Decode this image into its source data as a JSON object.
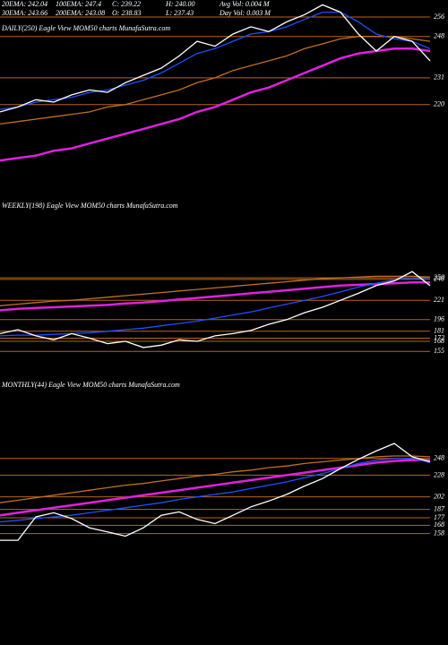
{
  "header": {
    "row1": [
      "20EMA: 242.04",
      "100EMA: 247.4",
      "C: 239.22",
      "H: 240.00",
      "Avg Vol: 0.004  M"
    ],
    "row2": [
      "30EMA: 243.66",
      "200EMA: 243.08",
      "O: 238.83",
      "L: 237.43",
      "Day Vol: 0.003  M"
    ]
  },
  "chart_data": [
    {
      "type": "line",
      "title": "DAILY(250) Eagle  View  MOM50  charts MunafaSutra.com",
      "ylim": [
        193,
        263
      ],
      "yticks": [
        256,
        248,
        231,
        220
      ],
      "grid": true,
      "grid_color": "#b8651b",
      "series": [
        {
          "color": "#c07020",
          "values": [
            212,
            213,
            214,
            215,
            216,
            217,
            219,
            220,
            222,
            224,
            226,
            229,
            231,
            234,
            236,
            238,
            240,
            243,
            245,
            247,
            248,
            248,
            248,
            247,
            246
          ]
        },
        {
          "color": "#e020e0",
          "values": [
            197,
            198,
            199,
            201,
            202,
            204,
            206,
            208,
            210,
            212,
            214,
            217,
            219,
            222,
            225,
            227,
            230,
            233,
            236,
            239,
            241,
            242,
            243,
            243,
            242
          ]
        },
        {
          "color": "#1f4fff",
          "values": [
            218,
            219,
            221,
            222,
            223,
            225,
            226,
            228,
            230,
            233,
            237,
            241,
            243,
            246,
            249,
            250,
            252,
            255,
            258,
            258,
            254,
            249,
            247,
            246,
            243
          ]
        },
        {
          "color": "#ffffff",
          "values": [
            217,
            219,
            222,
            221,
            224,
            226,
            225,
            229,
            232,
            235,
            240,
            246,
            244,
            249,
            252,
            250,
            254,
            257,
            261,
            258,
            249,
            242,
            248,
            246,
            238
          ]
        }
      ]
    },
    {
      "type": "line",
      "title": "WEEKLY(198) Eagle  View  MOM50  charts MunafaSutra.com",
      "ylim": [
        146,
        337
      ],
      "yticks": [
        250,
        248,
        221,
        196,
        181,
        172,
        168,
        155
      ],
      "grid": true,
      "grid_color": "#b8651b",
      "series": [
        {
          "color": "#c07020",
          "values": [
            214,
            216,
            218,
            220,
            221,
            223,
            225,
            227,
            229,
            231,
            233,
            235,
            237,
            239,
            241,
            243,
            245,
            247,
            249,
            250,
            251,
            252,
            252,
            252,
            251
          ]
        },
        {
          "color": "#e020e0",
          "values": [
            208,
            210,
            211,
            212,
            213,
            214,
            215,
            217,
            218,
            220,
            222,
            224,
            226,
            228,
            230,
            232,
            234,
            236,
            238,
            240,
            241,
            242,
            243,
            244,
            244
          ]
        },
        {
          "color": "#1f4fff",
          "values": [
            175,
            176,
            176,
            177,
            178,
            179,
            181,
            183,
            185,
            188,
            191,
            194,
            198,
            202,
            206,
            211,
            216,
            221,
            226,
            232,
            238,
            243,
            247,
            250,
            248
          ]
        },
        {
          "color": "#ffffff",
          "values": [
            178,
            183,
            175,
            170,
            178,
            172,
            165,
            168,
            160,
            163,
            170,
            168,
            175,
            178,
            182,
            190,
            196,
            205,
            212,
            221,
            230,
            240,
            246,
            258,
            240
          ]
        }
      ]
    },
    {
      "type": "line",
      "title": "MONTHLY(44) Eagle  View  MOM50  charts MunafaSutra.com",
      "ylim": [
        148,
        325
      ],
      "yticks": [
        248,
        228,
        202,
        187,
        177,
        168,
        158
      ],
      "grid": true,
      "grid_color": "#b8651b",
      "series": [
        {
          "color": "#c07020",
          "values": [
            195,
            198,
            201,
            204,
            207,
            210,
            213,
            216,
            218,
            221,
            224,
            227,
            229,
            232,
            234,
            237,
            239,
            242,
            244,
            246,
            248,
            250,
            251,
            251,
            250
          ]
        },
        {
          "color": "#e020e0",
          "values": [
            180,
            183,
            186,
            189,
            192,
            195,
            198,
            201,
            204,
            207,
            210,
            213,
            216,
            219,
            222,
            225,
            228,
            231,
            234,
            237,
            240,
            243,
            245,
            246,
            246
          ]
        },
        {
          "color": "#1f4fff",
          "values": [
            172,
            174,
            176,
            178,
            180,
            183,
            186,
            189,
            192,
            195,
            199,
            202,
            205,
            208,
            212,
            216,
            220,
            225,
            230,
            236,
            242,
            246,
            248,
            248,
            243
          ]
        },
        {
          "color": "#ffffff",
          "values": [
            150,
            150,
            178,
            183,
            176,
            165,
            160,
            155,
            165,
            180,
            184,
            175,
            170,
            180,
            190,
            197,
            205,
            215,
            224,
            236,
            247,
            257,
            266,
            250,
            244
          ]
        }
      ]
    }
  ]
}
